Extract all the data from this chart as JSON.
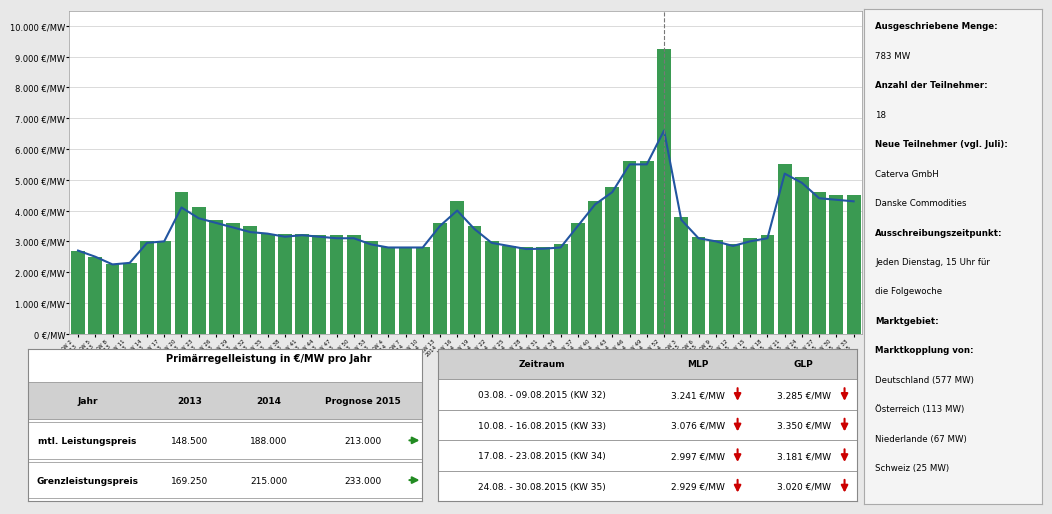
{
  "bar_labels": [
    "KW 2\n2013",
    "KW 5\n2013",
    "KW 8\n2013",
    "KW 11\n2013",
    "KW 14\n2013",
    "KW 17\n2013",
    "KW 20\n2013",
    "KW 23\n2013",
    "KW 26\n2013",
    "KW 29\n2013",
    "KW 32\n2013",
    "KW 35\n2013",
    "KW 38\n2013",
    "KW 41\n2013",
    "KW 44\n2013",
    "KW 47\n2013",
    "KW 50\n2013",
    "KW 53\n2013",
    "KW 4\n2014",
    "KW 7\n2014",
    "KW 10\n2014",
    "KW 13\n2014",
    "KW 16\n2014",
    "KW 19\n2014",
    "KW 22\n2014",
    "KW 25\n2014",
    "KW 28\n2014",
    "KW 31\n2014",
    "KW 34\n2014",
    "KW 37\n2014",
    "KW 40\n2014",
    "KW 43\n2014",
    "KW 46\n2014",
    "KW 49\n2014",
    "KW 52\n2014",
    "KW 3\n2015",
    "KW 6\n2015",
    "KW 9\n2015",
    "KW 12\n2015",
    "KW 15\n2015",
    "KW 18\n2015",
    "KW 21\n2015",
    "KW 24\n2015",
    "KW 27\n2015",
    "KW 30\n2015",
    "KW 33\n2015"
  ],
  "bar_values": [
    2700,
    2500,
    2250,
    2300,
    3000,
    3000,
    4600,
    4100,
    3700,
    3600,
    3500,
    3250,
    3250,
    3250,
    3200,
    3200,
    3200,
    3000,
    2800,
    2800,
    2800,
    3600,
    4300,
    3500,
    3000,
    2850,
    2800,
    2800,
    2900,
    3600,
    4300,
    4750,
    5600,
    5600,
    9250,
    3800,
    3150,
    3050,
    2900,
    3100,
    3200,
    5500,
    5100,
    4600,
    4500,
    4500
  ],
  "line_values": [
    2700,
    2500,
    2250,
    2300,
    2950,
    3000,
    4100,
    3750,
    3600,
    3450,
    3300,
    3250,
    3150,
    3200,
    3150,
    3100,
    3100,
    2900,
    2800,
    2800,
    2800,
    3500,
    4000,
    3400,
    2950,
    2850,
    2750,
    2760,
    2800,
    3500,
    4200,
    4600,
    5500,
    5500,
    6600,
    3700,
    3100,
    3000,
    2850,
    3000,
    3100,
    5200,
    4900,
    4400,
    4350,
    4300
  ],
  "bar_color": "#3a9a52",
  "line_color": "#2255a0",
  "background_color": "#e8e8e8",
  "plot_bg_color": "#ffffff",
  "ytick_labels": [
    "0 €/MW",
    "1.000 €/MW",
    "2.000 €/MW",
    "3.000 €/MW",
    "4.000 €/MW",
    "5.000 €/MW",
    "6.000 €/MW",
    "7.000 €/MW",
    "8.000 €/MW",
    "9.000 €/MW",
    "10.000 €/MW"
  ],
  "ytick_values": [
    0,
    1000,
    2000,
    3000,
    4000,
    5000,
    6000,
    7000,
    8000,
    9000,
    10000
  ],
  "vline_x": [
    34,
    52
  ],
  "right_panel_lines": [
    [
      "Ausgeschriebene Menge:",
      true
    ],
    [
      "783 MW",
      false
    ],
    [
      "Anzahl der Teilnehmer:",
      true
    ],
    [
      "18",
      false
    ],
    [
      "Neue Teilnehmer (vgl. Juli):",
      true
    ],
    [
      "Caterva GmbH",
      false
    ],
    [
      "Danske Commodities",
      false
    ],
    [
      "Ausschreibungszeitpunkt:",
      true
    ],
    [
      "Jeden Dienstag, 15 Uhr für",
      false
    ],
    [
      "die Folgewoche",
      false
    ],
    [
      "Marktgebiet:",
      true
    ],
    [
      "Marktkopplung von:",
      true
    ],
    [
      "Deutschland (577 MW)",
      false
    ],
    [
      "Österreich (113 MW)",
      false
    ],
    [
      "Niederlande (67 MW)",
      false
    ],
    [
      "Schweiz (25 MW)",
      false
    ]
  ],
  "table1_title": "Primärregelleistung in €/MW pro Jahr",
  "table1_rows": [
    [
      "Jahr",
      "2013",
      "2014",
      "Prognose 2015"
    ],
    [
      "mtl. Leistungspreis",
      "148.500",
      "188.000",
      "213.000"
    ],
    [
      "Grenzleistungspreis",
      "169.250",
      "215.000",
      "233.000"
    ]
  ],
  "table2_headers": [
    "Zeitraum",
    "MLP",
    "GLP"
  ],
  "table2_rows": [
    [
      "03.08. - 09.08.2015 (KW 32)",
      "3.241 €/MW",
      "3.285 €/MW"
    ],
    [
      "10.08. - 16.08.2015 (KW 33)",
      "3.076 €/MW",
      "3.350 €/MW"
    ],
    [
      "17.08. - 23.08.2015 (KW 34)",
      "2.997 €/MW",
      "3.181 €/MW"
    ],
    [
      "24.08. - 30.08.2015 (KW 35)",
      "2.929 €/MW",
      "3.020 €/MW"
    ]
  ]
}
